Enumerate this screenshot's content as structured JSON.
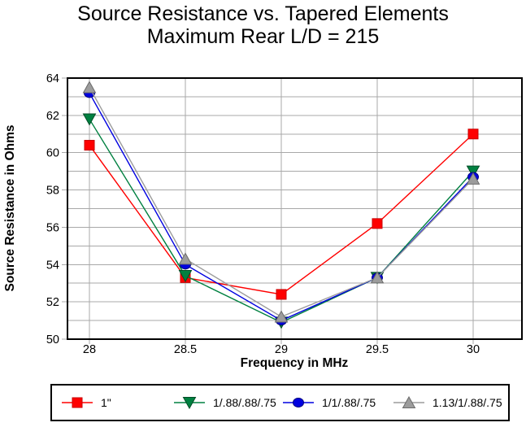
{
  "chart_data": {
    "type": "line",
    "title": "Source Resistance vs. Tapered Elements",
    "subtitle": "Maximum Rear L/D = 215",
    "xlabel": "Frequency in MHz",
    "ylabel": "Source Resistance in Ohms",
    "x": [
      28,
      28.5,
      29,
      29.5,
      30
    ],
    "x_tick_labels": [
      "28",
      "28.5",
      "29",
      "29.5",
      "30"
    ],
    "ylim": [
      50,
      64
    ],
    "y_tick_labels": [
      "50",
      "52",
      "54",
      "56",
      "58",
      "60",
      "62",
      "64"
    ],
    "y_label_step": 2,
    "y_grid_step": 1,
    "grid": "on",
    "legend_position": "bottom",
    "series": [
      {
        "name": "1\"",
        "marker": "square",
        "color": "#ff0000",
        "edge_color": "#c80000",
        "values": [
          60.4,
          53.3,
          52.4,
          56.2,
          61.0
        ]
      },
      {
        "name": "1/.88/.88/.75",
        "marker": "triangle-down",
        "color": "#008040",
        "edge_color": "#004d26",
        "values": [
          61.8,
          53.4,
          50.9,
          53.3,
          59.0
        ]
      },
      {
        "name": "1/1/.88/.75",
        "marker": "circle",
        "color": "#0000e0",
        "edge_color": "#000080",
        "values": [
          63.2,
          54.0,
          51.0,
          53.3,
          58.7
        ]
      },
      {
        "name": "1.13/1/.88/.75",
        "marker": "triangle-up",
        "color": "#9c9c9c",
        "edge_color": "#6b6b6b",
        "values": [
          63.5,
          54.3,
          51.2,
          53.3,
          58.6
        ]
      }
    ],
    "grid_color": "#a8a8a8",
    "axis_color": "#000000",
    "background": "#ffffff"
  }
}
